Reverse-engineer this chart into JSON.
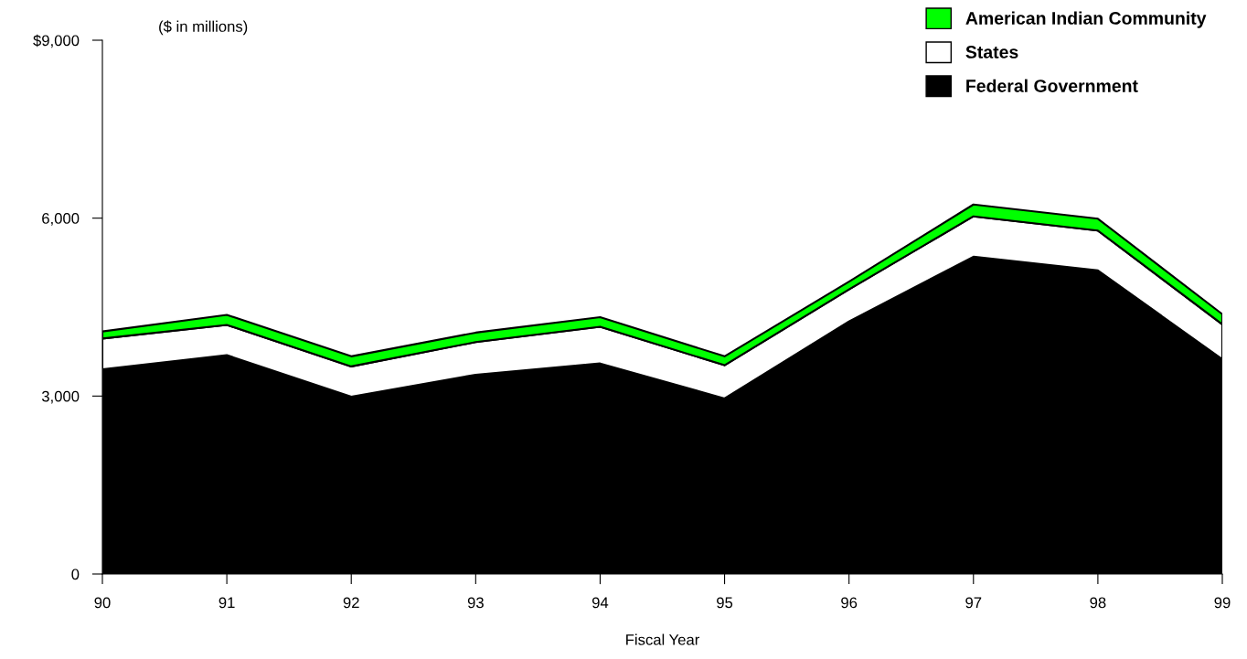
{
  "chart_data": {
    "type": "area",
    "stacked": true,
    "xlabel": "Fiscal Year",
    "ylabel": "($ in millions)",
    "categories": [
      "90",
      "91",
      "92",
      "93",
      "94",
      "95",
      "96",
      "97",
      "98",
      "99"
    ],
    "series": [
      {
        "name": "Federal Government",
        "color": "#000000",
        "values": [
          3450,
          3690,
          2990,
          3360,
          3550,
          2960,
          4260,
          5350,
          5120,
          3620
        ]
      },
      {
        "name": "States",
        "color": "#ffffff",
        "values": [
          520,
          510,
          510,
          550,
          620,
          560,
          540,
          680,
          670,
          590
        ]
      },
      {
        "name": "American Indian Community",
        "color": "#00ff00",
        "values": [
          120,
          170,
          170,
          160,
          160,
          150,
          130,
          200,
          200,
          170
        ]
      }
    ],
    "ylim": [
      0,
      9000
    ],
    "yticks": [
      0,
      {
        "value": 3000,
        "label": "3,000"
      },
      {
        "value": 6000,
        "label": "6,000"
      },
      {
        "value": 9000,
        "label": "$9,000"
      }
    ],
    "grid": false,
    "legend": "top right"
  }
}
